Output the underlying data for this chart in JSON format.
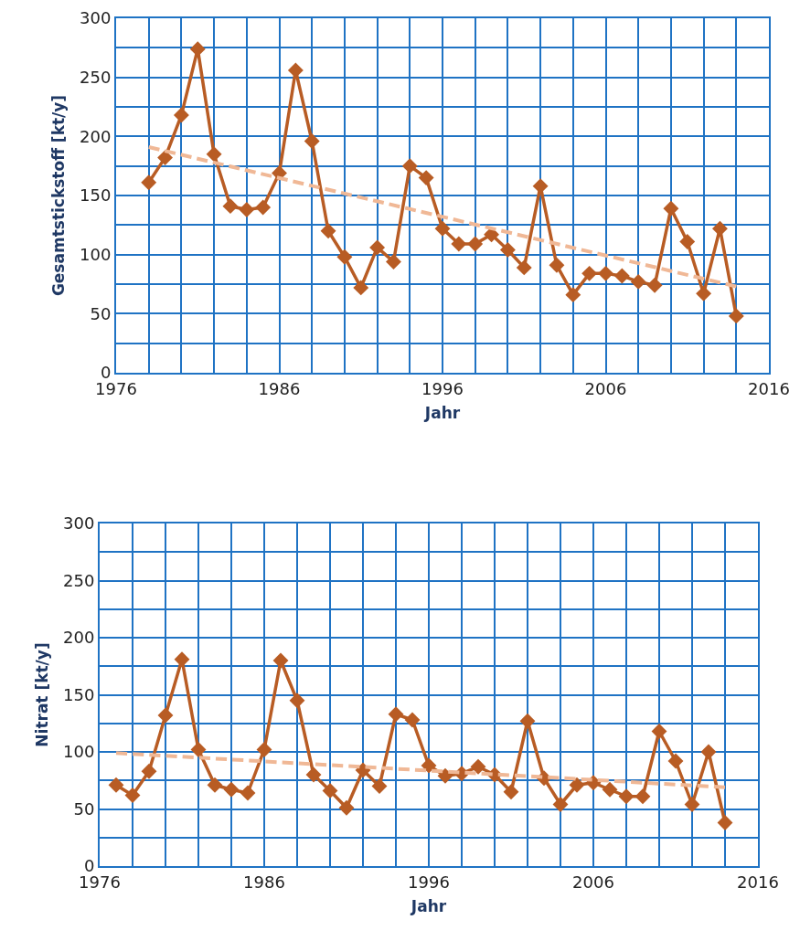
{
  "chart_data": [
    {
      "type": "line",
      "xlabel": "Jahr",
      "ylabel": "Gesamtstickstoff [kt/y]",
      "grid": true,
      "xlim": [
        1976,
        2016
      ],
      "ylim": [
        0,
        300
      ],
      "xticks": [
        1976,
        {
          "value": 1978,
          "label": null
        },
        {
          "value": 1980,
          "label": null
        },
        {
          "value": 1982,
          "label": null
        },
        {
          "value": 1984,
          "label": null
        },
        1986,
        {
          "value": 1988,
          "label": null
        },
        {
          "value": 1990,
          "label": null
        },
        {
          "value": 1992,
          "label": null
        },
        {
          "value": 1994,
          "label": null
        },
        1996,
        {
          "value": 1998,
          "label": null
        },
        {
          "value": 2000,
          "label": null
        },
        {
          "value": 2002,
          "label": null
        },
        {
          "value": 2004,
          "label": null
        },
        2006,
        {
          "value": 2008,
          "label": null
        },
        {
          "value": 2010,
          "label": null
        },
        {
          "value": 2012,
          "label": null
        },
        {
          "value": 2014,
          "label": null
        },
        2016
      ],
      "yticks": [
        0,
        {
          "value": 25,
          "label": null
        },
        50,
        {
          "value": 75,
          "label": null
        },
        100,
        {
          "value": 125,
          "label": null
        },
        150,
        {
          "value": 175,
          "label": null
        },
        200,
        {
          "value": 225,
          "label": null
        },
        250,
        {
          "value": 275,
          "label": null
        },
        300
      ],
      "x": [
        1978,
        1979,
        1980,
        1981,
        1982,
        1983,
        1984,
        1985,
        1986,
        1987,
        1988,
        1989,
        1990,
        1991,
        1992,
        1993,
        1994,
        1995,
        1996,
        1997,
        1998,
        1999,
        2000,
        2001,
        2002,
        2003,
        2004,
        2005,
        2006,
        2007,
        2008,
        2009,
        2010,
        2011,
        2012,
        2013,
        2014
      ],
      "series": [
        {
          "color": "#b85c24",
          "marker": "diamond",
          "line_style": "solid",
          "values": [
            161,
            182,
            218,
            274,
            185,
            141,
            138,
            140,
            169,
            256,
            196,
            120,
            98,
            72,
            106,
            94,
            175,
            165,
            122,
            109,
            109,
            117,
            104,
            89,
            158,
            91,
            66,
            84,
            84,
            82,
            77,
            74,
            139,
            111,
            67,
            122,
            48
          ]
        },
        {
          "type": "line",
          "color": "#f0b896",
          "marker": "none",
          "line_style": "dashed",
          "x": [
            1978,
            2014
          ],
          "values": [
            191,
            73
          ]
        }
      ]
    },
    {
      "type": "line",
      "xlabel": "Jahr",
      "ylabel": "Nitrat [kt/y]",
      "grid": true,
      "xlim": [
        1976,
        2016
      ],
      "ylim": [
        0,
        300
      ],
      "xticks": [
        1976,
        {
          "value": 1978,
          "label": null
        },
        {
          "value": 1980,
          "label": null
        },
        {
          "value": 1982,
          "label": null
        },
        {
          "value": 1984,
          "label": null
        },
        1986,
        {
          "value": 1988,
          "label": null
        },
        {
          "value": 1990,
          "label": null
        },
        {
          "value": 1992,
          "label": null
        },
        {
          "value": 1994,
          "label": null
        },
        1996,
        {
          "value": 1998,
          "label": null
        },
        {
          "value": 2000,
          "label": null
        },
        {
          "value": 2002,
          "label": null
        },
        {
          "value": 2004,
          "label": null
        },
        2006,
        {
          "value": 2008,
          "label": null
        },
        {
          "value": 2010,
          "label": null
        },
        {
          "value": 2012,
          "label": null
        },
        {
          "value": 2014,
          "label": null
        },
        2016
      ],
      "yticks": [
        0,
        {
          "value": 25,
          "label": null
        },
        50,
        {
          "value": 75,
          "label": null
        },
        100,
        {
          "value": 125,
          "label": null
        },
        150,
        {
          "value": 175,
          "label": null
        },
        200,
        {
          "value": 225,
          "label": null
        },
        250,
        {
          "value": 275,
          "label": null
        },
        300
      ],
      "x": [
        1977,
        1978,
        1979,
        1980,
        1981,
        1982,
        1983,
        1984,
        1985,
        1986,
        1987,
        1988,
        1989,
        1990,
        1991,
        1992,
        1993,
        1994,
        1995,
        1996,
        1997,
        1998,
        1999,
        2000,
        2001,
        2002,
        2003,
        2004,
        2005,
        2006,
        2007,
        2008,
        2009,
        2010,
        2011,
        2012,
        2013,
        2014
      ],
      "series": [
        {
          "color": "#b85c24",
          "marker": "diamond",
          "line_style": "solid",
          "values": [
            71,
            62,
            83,
            132,
            181,
            102,
            71,
            67,
            64,
            102,
            180,
            145,
            80,
            66,
            51,
            84,
            70,
            133,
            128,
            88,
            79,
            81,
            87,
            80,
            65,
            127,
            77,
            54,
            71,
            73,
            67,
            61,
            61,
            118,
            92,
            54,
            100,
            38
          ]
        },
        {
          "type": "line",
          "color": "#f0b896",
          "marker": "none",
          "line_style": "dashed",
          "x": [
            1977,
            2014
          ],
          "values": [
            99,
            69
          ]
        }
      ]
    }
  ]
}
